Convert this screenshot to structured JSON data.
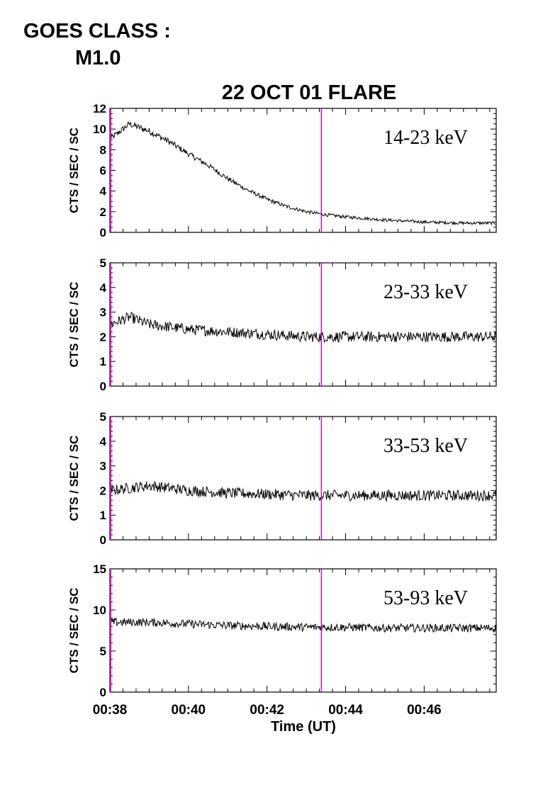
{
  "header": {
    "goes_label": "GOES CLASS :",
    "goes_class": "M1.0"
  },
  "chart_data": {
    "type": "line",
    "title": "22 OCT 01 FLARE",
    "xlabel": "Time (UT)",
    "x_unit": "minutes (UT)",
    "xlim": [
      "00:38",
      "00:47:50"
    ],
    "x_ticks": [
      "00:38",
      "00:40",
      "00:42",
      "00:44",
      "00:46"
    ],
    "vertical_markers": [
      {
        "time": "00:38",
        "color": "#cc00cc"
      },
      {
        "time": "00:43:23",
        "color": "#cc00cc"
      }
    ],
    "panels": [
      {
        "label": "14-23 keV",
        "ylabel": "CTS / SEC / SC",
        "ylim": [
          0,
          12
        ],
        "y_ticks": [
          0,
          2,
          4,
          6,
          8,
          10,
          12
        ],
        "series": {
          "x": [
            "00:38",
            "00:38:30",
            "00:39",
            "00:39:30",
            "00:40",
            "00:40:30",
            "00:41",
            "00:41:30",
            "00:42",
            "00:42:30",
            "00:43",
            "00:43:30",
            "00:44",
            "00:44:30",
            "00:45",
            "00:46",
            "00:47",
            "00:47:50"
          ],
          "y": [
            9.0,
            10.5,
            9.8,
            8.8,
            7.6,
            6.5,
            5.2,
            4.1,
            3.2,
            2.5,
            2.0,
            1.7,
            1.5,
            1.35,
            1.2,
            1.0,
            0.9,
            0.9
          ]
        }
      },
      {
        "label": "23-33 keV",
        "ylabel": "CTS / SEC / SC",
        "ylim": [
          0,
          5
        ],
        "y_ticks": [
          0,
          1,
          2,
          3,
          4,
          5
        ],
        "series": {
          "x": [
            "00:38",
            "00:38:30",
            "00:39",
            "00:40",
            "00:41",
            "00:42",
            "00:43",
            "00:44",
            "00:45",
            "00:46",
            "00:47",
            "00:47:50"
          ],
          "y": [
            2.5,
            2.8,
            2.5,
            2.3,
            2.2,
            2.1,
            2.0,
            2.0,
            2.0,
            2.0,
            2.0,
            2.0
          ]
        }
      },
      {
        "label": "33-53 keV",
        "ylabel": "CTS / SEC / SC",
        "ylim": [
          0,
          5
        ],
        "y_ticks": [
          0,
          1,
          2,
          3,
          4,
          5
        ],
        "series": {
          "x": [
            "00:38",
            "00:39",
            "00:40",
            "00:41",
            "00:42",
            "00:43",
            "00:44",
            "00:45",
            "00:46",
            "00:47",
            "00:47:50"
          ],
          "y": [
            2.0,
            2.2,
            2.0,
            1.9,
            1.85,
            1.8,
            1.8,
            1.8,
            1.8,
            1.8,
            1.8
          ]
        }
      },
      {
        "label": "53-93 keV",
        "ylabel": "CTS / SEC / SC",
        "ylim": [
          0,
          15
        ],
        "y_ticks": [
          0,
          5,
          10,
          15
        ],
        "series": {
          "x": [
            "00:38",
            "00:39",
            "00:40",
            "00:41",
            "00:42",
            "00:43",
            "00:44",
            "00:45",
            "00:46",
            "00:47",
            "00:47:50"
          ],
          "y": [
            8.5,
            8.5,
            8.3,
            8.1,
            8.0,
            7.9,
            7.9,
            7.8,
            7.8,
            7.8,
            7.8
          ]
        }
      }
    ]
  }
}
